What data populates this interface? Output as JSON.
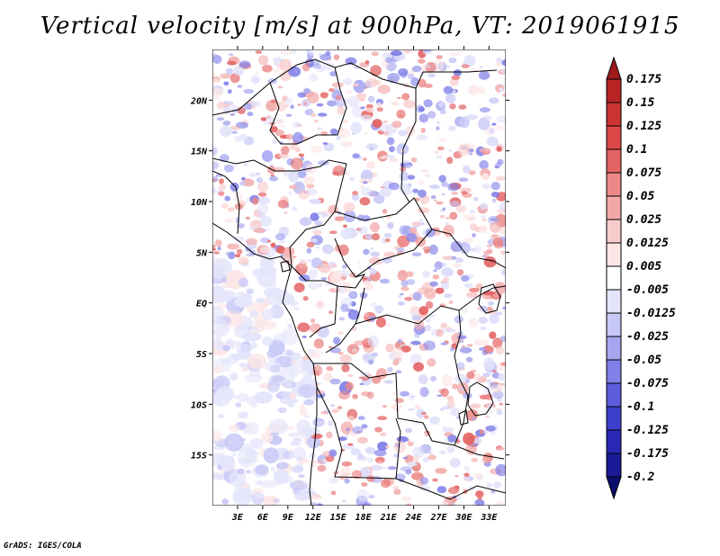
{
  "title": "Vertical velocity [m/s] at 900hPa, VT: 2019061915",
  "footer": "GrADS: IGES/COLA",
  "map": {
    "lon_range": [
      0,
      35
    ],
    "lat_range": [
      -20,
      25
    ],
    "lon_ticks": [
      "3E",
      "6E",
      "9E",
      "12E",
      "15E",
      "18E",
      "21E",
      "24E",
      "27E",
      "30E",
      "33E"
    ],
    "lat_ticks": [
      "20N",
      "15N",
      "10N",
      "5N",
      "EQ",
      "5S",
      "10S",
      "15S"
    ],
    "field": "vertical velocity",
    "units": "m/s",
    "level": "900hPa"
  },
  "colorbar": {
    "labels": [
      "0.175",
      "0.15",
      "0.125",
      "0.1",
      "0.075",
      "0.05",
      "0.025",
      "0.0125",
      "0.005",
      "-0.005",
      "-0.0125",
      "-0.025",
      "-0.05",
      "-0.075",
      "-0.1",
      "-0.125",
      "-0.175",
      "-0.2"
    ],
    "colors": [
      "#a01c1c",
      "#b82424",
      "#cc3434",
      "#dc4848",
      "#e46464",
      "#ec8888",
      "#f2a8a8",
      "#f8cccc",
      "#fde6e6",
      "#ffffff",
      "#e4e4fb",
      "#c8c8f7",
      "#a6a6f0",
      "#8080e8",
      "#5c5cdc",
      "#3e3ecc",
      "#2828b4",
      "#1a1a96",
      "#0c0c6e"
    ]
  }
}
